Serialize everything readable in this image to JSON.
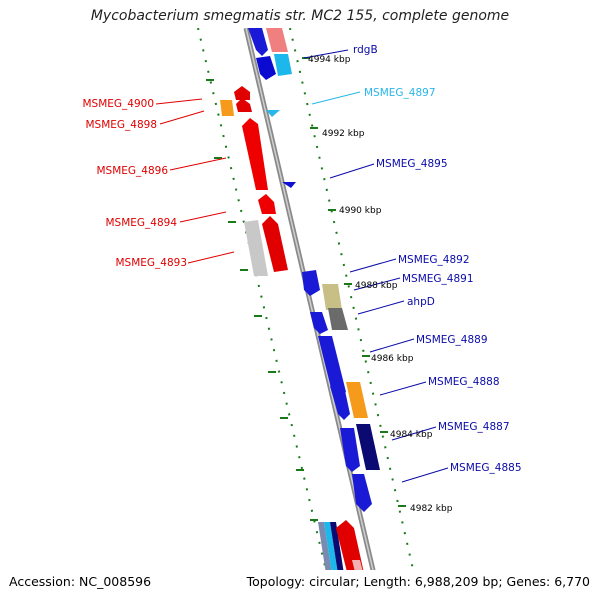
{
  "title": "Mycobacterium smegmatis str. MC2 155, complete genome",
  "footer": {
    "accession": "Accession: NC_008596",
    "summary": "Topology: circular; Length: 6,988,209 bp; Genes: 6,770"
  },
  "kbp_labels": [
    "4994 kbp",
    "4992 kbp",
    "4990 kbp",
    "4988 kbp",
    "4986 kbp",
    "4984 kbp",
    "4982 kbp"
  ],
  "colors": {
    "forward_label": "#0a0aa8",
    "reverse_label": "#e00000",
    "cyan_label": "#29b6e8",
    "backbone": "#8a8a8a",
    "ruler": "#1a7a1a"
  },
  "genes": [
    {
      "name": "rdgB",
      "strand": "forward",
      "color": "#0a0aa8"
    },
    {
      "name": "MSMEG_4897",
      "strand": "forward",
      "color": "#29b6e8"
    },
    {
      "name": "MSMEG_4900",
      "strand": "reverse",
      "color": "#e00000"
    },
    {
      "name": "MSMEG_4898",
      "strand": "reverse",
      "color": "#e00000"
    },
    {
      "name": "MSMEG_4896",
      "strand": "reverse",
      "color": "#e00000"
    },
    {
      "name": "MSMEG_4895",
      "strand": "forward",
      "color": "#0a0aa8"
    },
    {
      "name": "MSMEG_4894",
      "strand": "reverse",
      "color": "#e00000"
    },
    {
      "name": "MSMEG_4893",
      "strand": "reverse",
      "color": "#e00000"
    },
    {
      "name": "MSMEG_4892",
      "strand": "forward",
      "color": "#0a0aa8"
    },
    {
      "name": "MSMEG_4891",
      "strand": "forward",
      "color": "#0a0aa8"
    },
    {
      "name": "ahpD",
      "strand": "forward",
      "color": "#0a0aa8"
    },
    {
      "name": "MSMEG_4889",
      "strand": "forward",
      "color": "#0a0aa8"
    },
    {
      "name": "MSMEG_4888",
      "strand": "forward",
      "color": "#0a0aa8"
    },
    {
      "name": "MSMEG_4887",
      "strand": "forward",
      "color": "#0a0aa8"
    },
    {
      "name": "MSMEG_4885",
      "strand": "forward",
      "color": "#0a0aa8"
    }
  ]
}
